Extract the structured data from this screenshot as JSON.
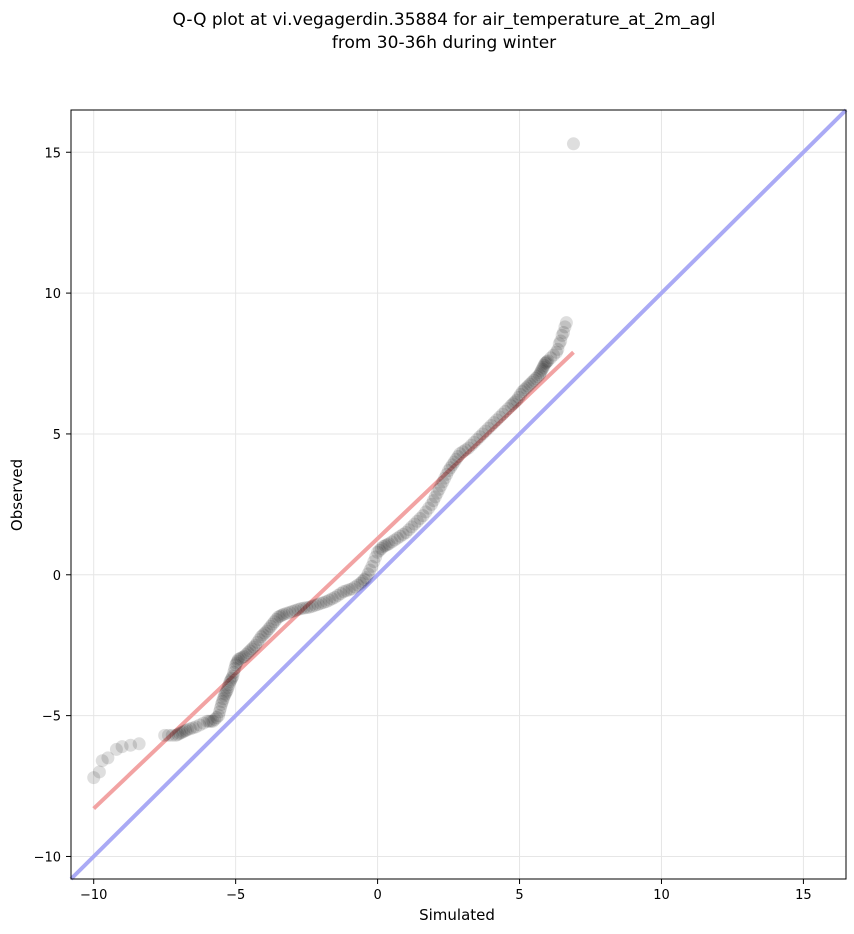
{
  "chart_data": {
    "type": "scatter",
    "title": "Q-Q plot at vi.vegagerdin.35884 for air_temperature_at_2m_agl",
    "subtitle": "from 30-36h during winter",
    "xlabel": "Simulated",
    "ylabel": "Observed",
    "xlim": [
      -10.8,
      16.5
    ],
    "ylim": [
      -10.8,
      16.5
    ],
    "xticks": [
      -10,
      -5,
      0,
      5,
      10,
      15
    ],
    "yticks": [
      -10,
      -5,
      0,
      5,
      10,
      15
    ],
    "xtick_labels": [
      "−10",
      "−5",
      "0",
      "5",
      "10",
      "15"
    ],
    "ytick_labels": [
      "−10",
      "−5",
      "0",
      "5",
      "10",
      "15"
    ],
    "grid": true,
    "identity_line_color": "#aaaaf5",
    "fit_line_color": "#f2a3a3",
    "point_color": "#000000",
    "fit_line": {
      "x": [
        -10,
        6.9
      ],
      "y": [
        -8.3,
        7.9
      ]
    },
    "identity_line": {
      "x": [
        -10.8,
        16.5
      ],
      "y": [
        -10.8,
        16.5
      ]
    },
    "points": [
      [
        -10,
        -7.2
      ],
      [
        -9.8,
        -7
      ],
      [
        -9.7,
        -6.6
      ],
      [
        -9.5,
        -6.5
      ],
      [
        -9.2,
        -6.2
      ],
      [
        -9,
        -6.1
      ],
      [
        -8.7,
        -6.05
      ],
      [
        -8.4,
        -6
      ],
      [
        -7.5,
        -5.7
      ],
      [
        -7.1,
        -5.7
      ],
      [
        -6.9,
        -5.6
      ],
      [
        -6.7,
        -5.5
      ],
      [
        -6.4,
        -5.4
      ],
      [
        -6,
        -5.2
      ],
      [
        -5.8,
        -5.2
      ],
      [
        -5.6,
        -5
      ],
      [
        -5.5,
        -4.6
      ],
      [
        -5.4,
        -4.3
      ],
      [
        -5.3,
        -4.1
      ],
      [
        -5.2,
        -3.8
      ],
      [
        -5.1,
        -3.6
      ],
      [
        -5,
        -3.2
      ],
      [
        -4.9,
        -3
      ],
      [
        -4.7,
        -2.9
      ],
      [
        -4.5,
        -2.7
      ],
      [
        -4.3,
        -2.5
      ],
      [
        -4.1,
        -2.2
      ],
      [
        -3.9,
        -2
      ],
      [
        -3.7,
        -1.75
      ],
      [
        -3.5,
        -1.5
      ],
      [
        -3.3,
        -1.4
      ],
      [
        -3,
        -1.3
      ],
      [
        -2.7,
        -1.2
      ],
      [
        -2.4,
        -1.15
      ],
      [
        -2.1,
        -1.05
      ],
      [
        -1.8,
        -0.95
      ],
      [
        -1.5,
        -0.8
      ],
      [
        -1.2,
        -0.6
      ],
      [
        -0.9,
        -0.5
      ],
      [
        -0.6,
        -0.3
      ],
      [
        -0.4,
        -0.1
      ],
      [
        -0.2,
        0.3
      ],
      [
        0,
        0.8
      ],
      [
        0.2,
        1
      ],
      [
        0.4,
        1.1
      ],
      [
        0.7,
        1.3
      ],
      [
        1,
        1.5
      ],
      [
        1.3,
        1.8
      ],
      [
        1.6,
        2.1
      ],
      [
        1.9,
        2.5
      ],
      [
        2.1,
        2.9
      ],
      [
        2.3,
        3.3
      ],
      [
        2.5,
        3.7
      ],
      [
        2.7,
        4.0
      ],
      [
        2.9,
        4.3
      ],
      [
        3.2,
        4.5
      ],
      [
        3.5,
        4.8
      ],
      [
        3.8,
        5.1
      ],
      [
        4.1,
        5.4
      ],
      [
        4.4,
        5.7
      ],
      [
        4.7,
        6.0
      ],
      [
        4.9,
        6.2
      ],
      [
        5.1,
        6.5
      ],
      [
        5.3,
        6.7
      ],
      [
        5.5,
        6.9
      ],
      [
        5.7,
        7.1
      ],
      [
        5.8,
        7.3
      ],
      [
        5.9,
        7.5
      ],
      [
        6.0,
        7.6
      ],
      [
        6.1,
        7.7
      ],
      [
        6.2,
        7.8
      ],
      [
        6.3,
        7.9
      ],
      [
        6.35,
        8.0
      ],
      [
        6.4,
        8.2
      ],
      [
        6.45,
        8.3
      ],
      [
        6.5,
        8.5
      ],
      [
        6.55,
        8.6
      ],
      [
        6.6,
        8.8
      ],
      [
        6.65,
        8.95
      ],
      [
        6.9,
        15.3
      ]
    ]
  }
}
